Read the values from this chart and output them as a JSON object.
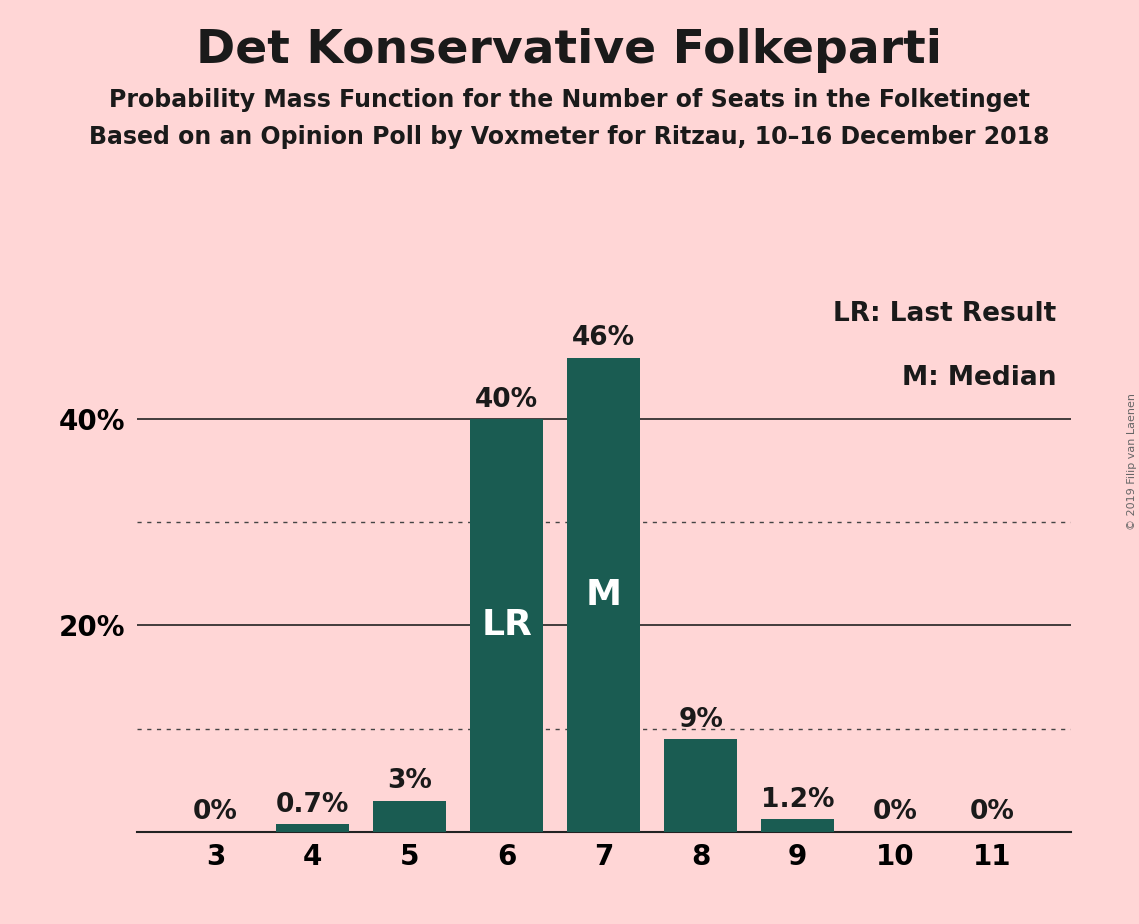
{
  "title": "Det Konservative Folkeparti",
  "subtitle1": "Probability Mass Function for the Number of Seats in the Folketinget",
  "subtitle2": "Based on an Opinion Poll by Voxmeter for Ritzau, 10–16 December 2018",
  "copyright": "© 2019 Filip van Laenen",
  "categories": [
    3,
    4,
    5,
    6,
    7,
    8,
    9,
    10,
    11
  ],
  "values": [
    0.0,
    0.7,
    3.0,
    40.0,
    46.0,
    9.0,
    1.2,
    0.0,
    0.0
  ],
  "labels": [
    "0%",
    "0.7%",
    "3%",
    "40%",
    "46%",
    "9%",
    "1.2%",
    "0%",
    "0%"
  ],
  "bar_color": "#1a5c52",
  "background_color": "#ffd6d6",
  "label_color_outside": "#1a1a1a",
  "label_color_inside": "#ffffff",
  "bar_annotations": [
    {
      "index": 3,
      "text": "LR",
      "color": "#ffffff"
    },
    {
      "index": 4,
      "text": "M",
      "color": "#ffffff"
    }
  ],
  "legend_text1": "LR: Last Result",
  "legend_text2": "M: Median",
  "ylim": [
    0,
    52
  ],
  "solid_gridlines": [
    20.0,
    40.0
  ],
  "dotted_gridlines": [
    10.0,
    30.0
  ],
  "title_fontsize": 34,
  "subtitle_fontsize": 17,
  "tick_fontsize": 20,
  "label_fontsize": 19,
  "annotation_fontsize": 26,
  "legend_fontsize": 19,
  "copyright_fontsize": 8
}
